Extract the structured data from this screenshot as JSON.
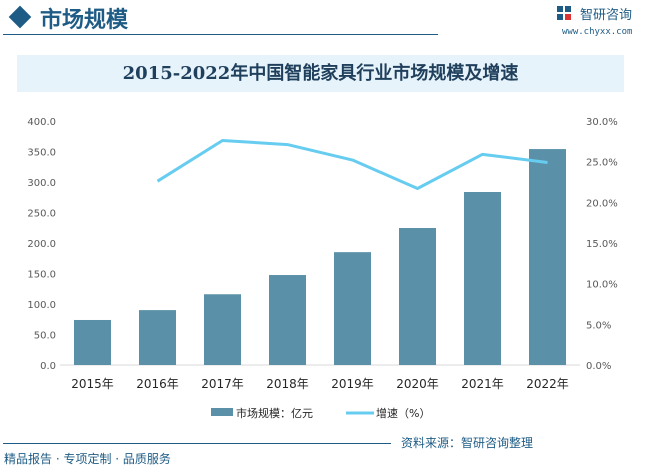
{
  "header": {
    "section_title": "市场规模",
    "logo_text": "智研咨询",
    "url": "www.chyxx.com"
  },
  "footer": {
    "source": "资料来源：智研咨询整理",
    "slogan": "精品报告 · 专项定制 · 品质服务"
  },
  "colors": {
    "bar": "#5b91a8",
    "line": "#66ccf0",
    "brand": "#1f5c85"
  },
  "chart_data": {
    "type": "bar+line",
    "title": "2015-2022年中国智能家具行业市场规模及增速",
    "categories": [
      "2015年",
      "2016年",
      "2017年",
      "2018年",
      "2019年",
      "2020年",
      "2021年",
      "2022年"
    ],
    "series": [
      {
        "name": "市场规模：亿元",
        "type": "bar",
        "axis": "left",
        "values": [
          73.8,
          90.0,
          116.0,
          147.5,
          185.0,
          224.6,
          283.6,
          354.0
        ]
      },
      {
        "name": "增速（%）",
        "type": "line",
        "axis": "right",
        "values": [
          null,
          22.6,
          27.6,
          27.1,
          25.2,
          21.7,
          25.9,
          24.9
        ]
      }
    ],
    "left_axis": {
      "range": [
        0,
        400
      ],
      "ticks": [
        "0.0",
        "50.0",
        "100.0",
        "150.0",
        "200.0",
        "250.0",
        "300.0",
        "350.0",
        "400.0"
      ]
    },
    "right_axis": {
      "range": [
        0,
        30
      ],
      "ticks": [
        "0.0%",
        "5.0%",
        "10.0%",
        "15.0%",
        "20.0%",
        "25.0%",
        "30.0%"
      ]
    },
    "grid": false,
    "legend": "bottom"
  }
}
